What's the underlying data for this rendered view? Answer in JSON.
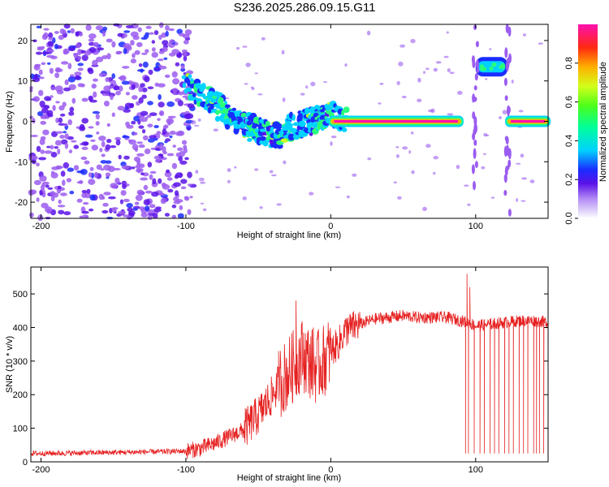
{
  "title": "S236.2025.286.09.15.G11",
  "colors": {
    "snr_line": "#e62020",
    "background": "#ffffff",
    "colormap": [
      "#ffffff",
      "#d8c4f4",
      "#9b5cf0",
      "#5a12e8",
      "#1a2cff",
      "#00d2ff",
      "#2aff7a",
      "#c8ff1e",
      "#ffb000",
      "#ff1a1a",
      "#ff10b0"
    ]
  },
  "chart_data": [
    {
      "type": "heatmap",
      "name": "spectrogram",
      "title": "S236.2025.286.09.15.G11",
      "xlabel": "Height of straight line (km)",
      "ylabel": "Frequency (Hz)",
      "xlim": [
        -207,
        150
      ],
      "ylim": [
        -24,
        24
      ],
      "xticks": [
        -200,
        -100,
        0,
        100
      ],
      "xtick_labels": [
        "-200",
        "-100",
        "0",
        "100"
      ],
      "yticks": [
        -20,
        -10,
        0,
        10,
        20
      ],
      "ytick_labels": [
        "-20",
        "-10",
        "0",
        "10",
        "20"
      ],
      "colorbar": {
        "label": "Normalized spectral amplitude",
        "range": [
          0,
          1
        ],
        "ticks": [
          0.0,
          0.2,
          0.4,
          0.6,
          0.8
        ],
        "tick_labels": [
          "0.0",
          "0.2",
          "0.4",
          "0.6",
          "0.8"
        ]
      },
      "noise_region": {
        "x_range": [
          -207,
          -95
        ],
        "f_range": [
          -24,
          24
        ],
        "amplitude": [
          0.05,
          0.25
        ]
      },
      "features": [
        {
          "kind": "descending_trace",
          "x": [
            -100,
            -85,
            -75,
            -65,
            -55,
            -45,
            -35,
            -25,
            -15,
            -8,
            0,
            10
          ],
          "f": [
            9,
            6,
            3,
            0,
            -1.5,
            -3,
            -3.5,
            -1,
            0,
            1,
            1.5,
            0
          ],
          "amplitude": 0.35
        },
        {
          "kind": "carrier_line",
          "x_range": [
            0,
            90
          ],
          "f": 0,
          "amplitude": 0.95
        },
        {
          "kind": "blob",
          "x_range": [
            100,
            122
          ],
          "f": 13.5,
          "amplitude": 0.3
        },
        {
          "kind": "segment",
          "x_range": [
            122,
            150
          ],
          "f": 0,
          "amplitude": 0.9
        },
        {
          "kind": "vertical_streak",
          "x": 100,
          "f_range": [
            -24,
            24
          ],
          "amplitude": 0.07
        },
        {
          "kind": "vertical_streak",
          "x": 122,
          "f_range": [
            -24,
            24
          ],
          "amplitude": 0.07
        }
      ]
    },
    {
      "type": "line",
      "name": "snr",
      "xlabel": "Height of straight line (km)",
      "ylabel": "SNR (10 * v/v)",
      "xlim": [
        -207,
        150
      ],
      "ylim": [
        0,
        580
      ],
      "xticks": [
        -200,
        -100,
        0,
        100
      ],
      "xtick_labels": [
        "-200",
        "-100",
        "0",
        "100"
      ],
      "yticks": [
        0,
        100,
        200,
        300,
        400,
        500
      ],
      "ytick_labels": [
        "0",
        "100",
        "200",
        "300",
        "400",
        "500"
      ],
      "series": [
        {
          "name": "SNR",
          "x": [
            -207,
            -180,
            -150,
            -120,
            -100,
            -90,
            -80,
            -70,
            -60,
            -50,
            -40,
            -35,
            -30,
            -25,
            -20,
            -15,
            -10,
            -5,
            0,
            5,
            10,
            20,
            30,
            40,
            50,
            60,
            70,
            80,
            90,
            95,
            100,
            110,
            120,
            130,
            140,
            150
          ],
          "values": [
            25,
            26,
            28,
            30,
            32,
            40,
            55,
            75,
            95,
            140,
            200,
            240,
            260,
            290,
            320,
            300,
            280,
            300,
            330,
            350,
            390,
            410,
            425,
            430,
            435,
            430,
            430,
            430,
            420,
            415,
            405,
            410,
            415,
            420,
            420,
            415
          ],
          "noise": [
            {
              "x_range": [
                -207,
                -100
              ],
              "amplitude": 8
            },
            {
              "x_range": [
                -100,
                -60
              ],
              "amplitude": 25
            },
            {
              "x_range": [
                -60,
                -35
              ],
              "amplitude": 60
            },
            {
              "x_range": [
                -35,
                0
              ],
              "amplitude": 110
            },
            {
              "x_range": [
                0,
                20
              ],
              "amplitude": 50
            },
            {
              "x_range": [
                20,
                150
              ],
              "amplitude": 18
            }
          ],
          "spikes": [
            {
              "x": -59,
              "value": 160
            },
            {
              "x": -36,
              "value": 330
            },
            {
              "x": -24,
              "value": 480
            },
            {
              "x": -12,
              "value": 400
            },
            {
              "x": 12,
              "value": 430
            },
            {
              "x": 94,
              "value": 560
            },
            {
              "x": 96,
              "value": 520
            }
          ],
          "dropouts": {
            "x": [
              93,
              95,
              99,
              103,
              106,
              110,
              113,
              116,
              120,
              123,
              126,
              130,
              133,
              136,
              140,
              142,
              144,
              147
            ],
            "value": 25
          }
        }
      ]
    }
  ]
}
